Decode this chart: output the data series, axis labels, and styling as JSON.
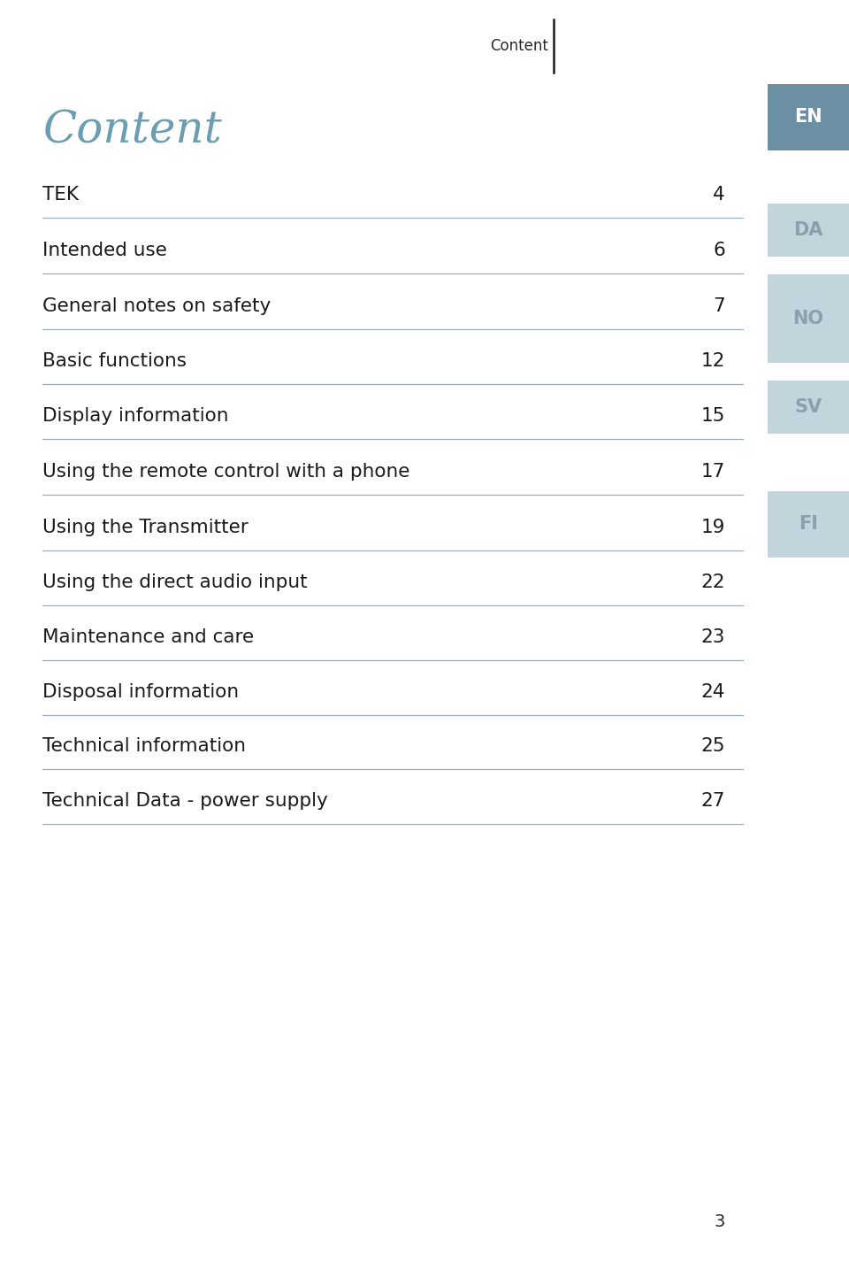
{
  "page_title_header": "Content",
  "main_title": "Content",
  "main_title_color": "#6b9db3",
  "main_title_fontsize": 36,
  "toc_items": [
    {
      "label": "TEK",
      "page": "4"
    },
    {
      "label": "Intended use",
      "page": "6"
    },
    {
      "label": "General notes on safety",
      "page": "7"
    },
    {
      "label": "Basic functions",
      "page": "12"
    },
    {
      "label": "Display information",
      "page": "15"
    },
    {
      "label": "Using the remote control with a phone",
      "page": "17"
    },
    {
      "label": "Using the Transmitter",
      "page": "19"
    },
    {
      "label": "Using the direct audio input",
      "page": "22"
    },
    {
      "label": "Maintenance and care",
      "page": "23"
    },
    {
      "label": "Disposal information",
      "page": "24"
    },
    {
      "label": "Technical information",
      "page": "25"
    },
    {
      "label": "Technical Data - power supply",
      "page": "27"
    }
  ],
  "toc_fontsize": 15.5,
  "toc_text_color": "#1a1a1a",
  "line_color": "#9ab0bc",
  "lang_tabs": [
    {
      "label": "EN",
      "color": "#6b8fa3",
      "text_color": "#ffffff"
    },
    {
      "label": "DA",
      "color": "#c2d4dc",
      "text_color": "#8aa0ac"
    },
    {
      "label": "NO",
      "color": "#c2d4dc",
      "text_color": "#8aa0ac"
    },
    {
      "label": "SV",
      "color": "#c2d4dc",
      "text_color": "#8aa0ac"
    },
    {
      "label": "FI",
      "color": "#c2d4dc",
      "text_color": "#8aa0ac"
    }
  ],
  "page_number": "3",
  "background_color": "#ffffff"
}
